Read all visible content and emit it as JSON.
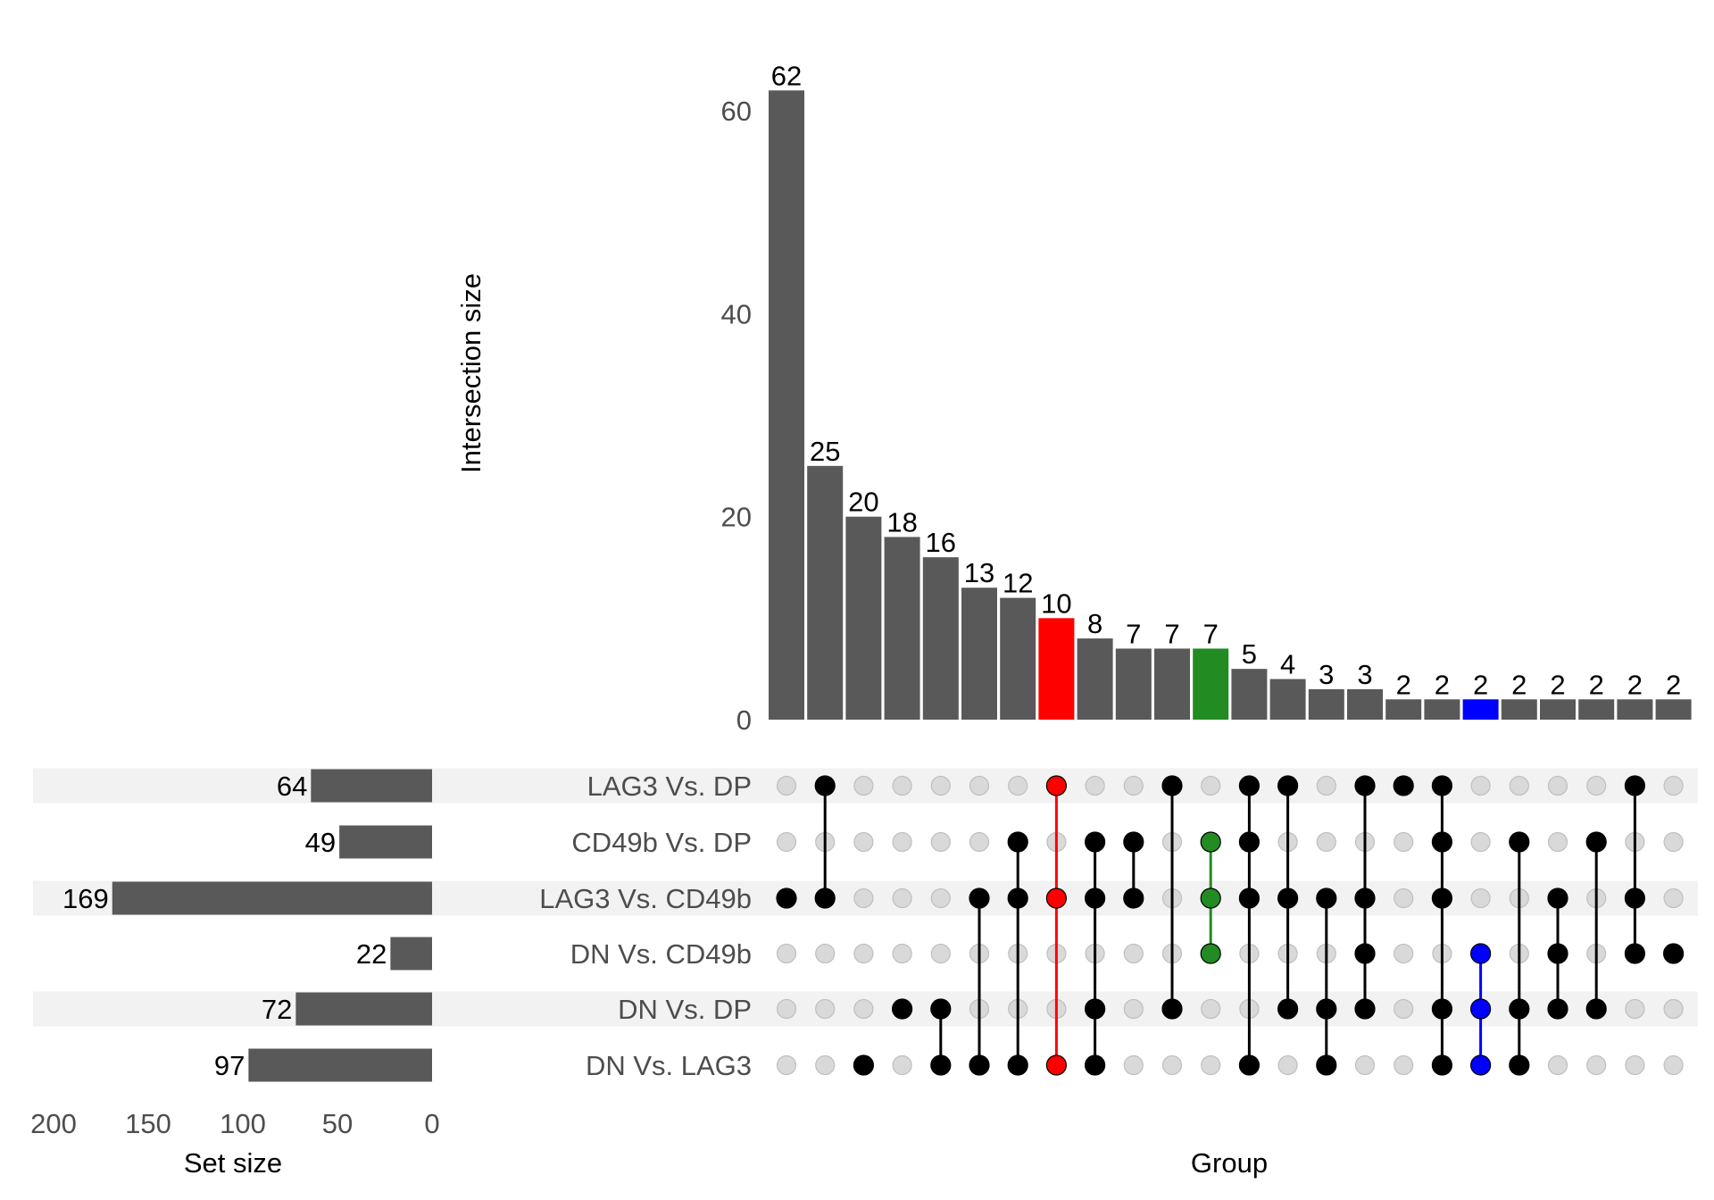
{
  "chart_data": {
    "type": "upset",
    "intersection_axis": {
      "label": "Intersection size",
      "ticks": [
        0,
        20,
        40,
        60
      ],
      "ylim": [
        0,
        62
      ]
    },
    "set_axis": {
      "label": "Set size",
      "ticks": [
        200,
        150,
        100,
        50,
        0
      ],
      "xlim": [
        200,
        0
      ]
    },
    "matrix_xlabel": "Group",
    "sets": [
      {
        "name": "LAG3 Vs. DP",
        "size": 64
      },
      {
        "name": "CD49b Vs. DP",
        "size": 49
      },
      {
        "name": "LAG3 Vs. CD49b",
        "size": 169
      },
      {
        "name": "DN Vs. CD49b",
        "size": 22
      },
      {
        "name": "DN Vs. DP",
        "size": 72
      },
      {
        "name": "DN Vs. LAG3",
        "size": 97
      }
    ],
    "intersections": [
      {
        "size": 62,
        "sets": [
          2
        ],
        "color": "#595959"
      },
      {
        "size": 25,
        "sets": [
          0,
          2
        ],
        "color": "#595959"
      },
      {
        "size": 20,
        "sets": [
          5
        ],
        "color": "#595959"
      },
      {
        "size": 18,
        "sets": [
          4
        ],
        "color": "#595959"
      },
      {
        "size": 16,
        "sets": [
          4,
          5
        ],
        "color": "#595959"
      },
      {
        "size": 13,
        "sets": [
          2,
          5
        ],
        "color": "#595959"
      },
      {
        "size": 12,
        "sets": [
          1,
          2,
          5
        ],
        "color": "#595959"
      },
      {
        "size": 10,
        "sets": [
          0,
          2,
          5
        ],
        "color": "#ff0000"
      },
      {
        "size": 8,
        "sets": [
          1,
          2,
          4,
          5
        ],
        "color": "#595959"
      },
      {
        "size": 7,
        "sets": [
          1,
          2
        ],
        "color": "#595959"
      },
      {
        "size": 7,
        "sets": [
          0,
          4
        ],
        "color": "#595959"
      },
      {
        "size": 7,
        "sets": [
          1,
          2,
          3
        ],
        "color": "#228b22"
      },
      {
        "size": 5,
        "sets": [
          0,
          1,
          2,
          5
        ],
        "color": "#595959"
      },
      {
        "size": 4,
        "sets": [
          0,
          2,
          4
        ],
        "color": "#595959"
      },
      {
        "size": 3,
        "sets": [
          2,
          4,
          5
        ],
        "color": "#595959"
      },
      {
        "size": 3,
        "sets": [
          0,
          2,
          3,
          4
        ],
        "color": "#595959"
      },
      {
        "size": 2,
        "sets": [
          0
        ],
        "color": "#595959"
      },
      {
        "size": 2,
        "sets": [
          0,
          1,
          2,
          4,
          5
        ],
        "color": "#595959"
      },
      {
        "size": 2,
        "sets": [
          3,
          4,
          5
        ],
        "color": "#0000ff"
      },
      {
        "size": 2,
        "sets": [
          1,
          4,
          5
        ],
        "color": "#595959"
      },
      {
        "size": 2,
        "sets": [
          2,
          3,
          4
        ],
        "color": "#595959"
      },
      {
        "size": 2,
        "sets": [
          1,
          4
        ],
        "color": "#595959"
      },
      {
        "size": 2,
        "sets": [
          0,
          2,
          3
        ],
        "color": "#595959"
      },
      {
        "size": 2,
        "sets": [
          3
        ],
        "color": "#595959"
      }
    ],
    "colors": {
      "bar": "#595959",
      "dot_active": "#000000",
      "dot_inactive": "#d9d9d9",
      "stripe": "#f2f2f2",
      "tick_text": "#4d4d4d"
    }
  }
}
